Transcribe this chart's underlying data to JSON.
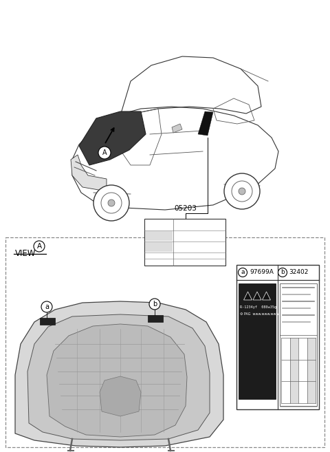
{
  "bg_color": "#ffffff",
  "label_a_num": "97699A",
  "label_b_num": "32402",
  "part_num": "05203",
  "view_label": "VIEW",
  "fig_width": 4.8,
  "fig_height": 6.57,
  "dpi": 100
}
